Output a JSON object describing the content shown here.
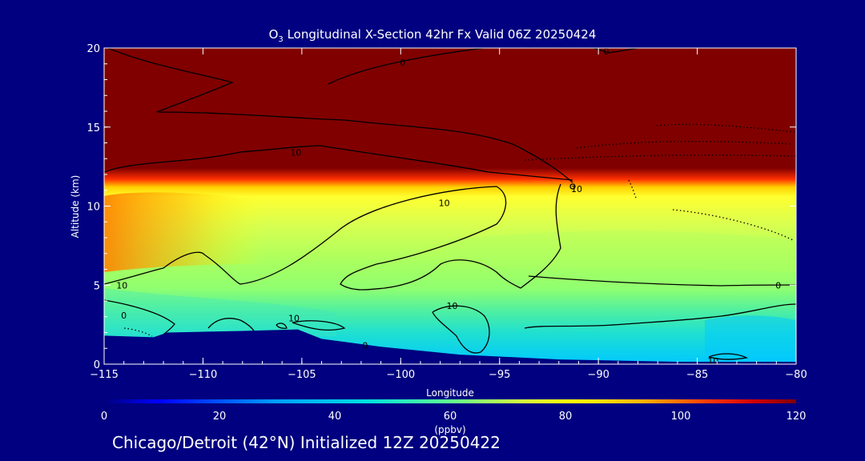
{
  "title": {
    "prefix": "O",
    "subscript": "3",
    "text": " Longitudinal X-Section 42hr  Fx Valid 06Z 20250424"
  },
  "footer": "Chicago/Detroit (42°N) Initialized 12Z 20250422",
  "chart_data": {
    "type": "heatmap",
    "variable": "O3",
    "xlabel": "Longitude",
    "ylabel": "Altitude (km)",
    "xlim": [
      -115,
      -80
    ],
    "ylim": [
      0,
      20
    ],
    "x_ticks": [
      -115,
      -110,
      -105,
      -100,
      -95,
      -90,
      -85,
      -80
    ],
    "x_tick_labels": [
      "−115",
      "−110",
      "−105",
      "−100",
      "−95",
      "−90",
      "−85",
      "−80"
    ],
    "y_ticks": [
      0,
      5,
      10,
      15,
      20
    ],
    "colorbar": {
      "label": "(ppbv)",
      "min": 0,
      "max": 120,
      "ticks": [
        0,
        20,
        40,
        60,
        80,
        100,
        120
      ],
      "colors": [
        "#000080",
        "#0000ff",
        "#00c8ff",
        "#40e0d0",
        "#80ff80",
        "#e0ff40",
        "#ffff00",
        "#ffa000",
        "#ff3000",
        "#c00000",
        "#800000"
      ]
    },
    "terrain": [
      {
        "lon": -115,
        "alt": 1.8
      },
      {
        "lon": -112.5,
        "alt": 1.7
      },
      {
        "lon": -111.8,
        "alt": 2.0
      },
      {
        "lon": -108,
        "alt": 2.1
      },
      {
        "lon": -105.2,
        "alt": 2.2
      },
      {
        "lon": -104,
        "alt": 1.6
      },
      {
        "lon": -101,
        "alt": 1.1
      },
      {
        "lon": -97,
        "alt": 0.6
      },
      {
        "lon": -92,
        "alt": 0.3
      },
      {
        "lon": -86,
        "alt": 0.15
      },
      {
        "lon": -80,
        "alt": 0.15
      }
    ],
    "contour_labels": [
      {
        "text": "0",
        "lon": -99.9,
        "alt": 19.1
      },
      {
        "text": "0",
        "lon": -89.6,
        "alt": 19.8
      },
      {
        "text": "10",
        "lon": -105.3,
        "alt": 13.4
      },
      {
        "text": "10",
        "lon": -97.8,
        "alt": 10.2
      },
      {
        "text": "10",
        "lon": -91.1,
        "alt": 11.1
      },
      {
        "text": "10",
        "lon": -114.1,
        "alt": 5.0
      },
      {
        "text": "0",
        "lon": -114.0,
        "alt": 3.1
      },
      {
        "text": "10",
        "lon": -105.4,
        "alt": 2.9
      },
      {
        "text": "10",
        "lon": -97.4,
        "alt": 3.7
      },
      {
        "text": "0",
        "lon": -101.8,
        "alt": 1.2
      },
      {
        "text": "0",
        "lon": -80.9,
        "alt": 5.0
      },
      {
        "text": "10",
        "lon": -84.2,
        "alt": 0.2
      }
    ]
  }
}
